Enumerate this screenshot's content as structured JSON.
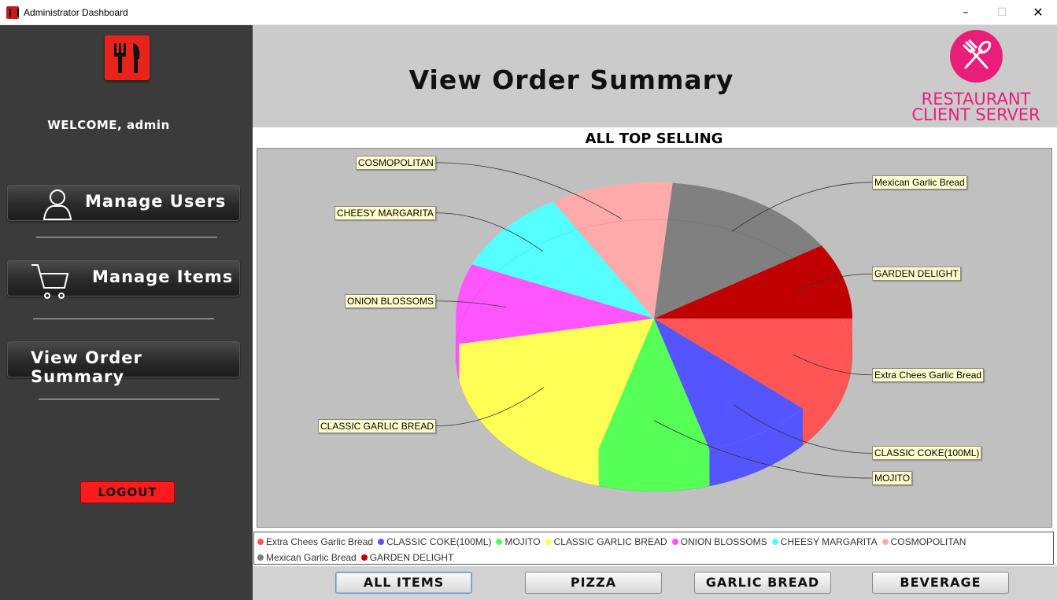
{
  "window": {
    "title": "Administrator Dashboard"
  },
  "sidebar": {
    "welcome": "WELCOME, admin",
    "nav": [
      {
        "label": "Manage Users",
        "icon": "user-icon"
      },
      {
        "label": "Manage Items",
        "icon": "cart-icon"
      },
      {
        "label": "View Order Summary"
      }
    ],
    "logout_label": "LOGOUT"
  },
  "header": {
    "title": "View Order Summary",
    "brand_line1": "RESTAURANT",
    "brand_line2": "CLIENT SERVER"
  },
  "chart_data": {
    "type": "pie",
    "title": "ALL TOP SELLING",
    "slices": [
      {
        "label": "Extra Chees Garlic Bread",
        "value": 11.5,
        "color": "#ff5555"
      },
      {
        "label": "CLASSIC COKE(100ML)",
        "value": 9,
        "color": "#5555ff"
      },
      {
        "label": "MOJITO",
        "value": 9,
        "color": "#55ff55"
      },
      {
        "label": "CLASSIC GARLIC BREAD",
        "value": 17.5,
        "color": "#ffff55"
      },
      {
        "label": "ONION BLOSSOMS",
        "value": 9.5,
        "color": "#ff55ff"
      },
      {
        "label": "CHEESY MARGARITA",
        "value": 10,
        "color": "#55ffff"
      },
      {
        "label": "COSMOPOLITAN",
        "value": 10,
        "color": "#ffaaaa"
      },
      {
        "label": "Mexican Garlic Bread",
        "value": 14.5,
        "color": "#808080"
      },
      {
        "label": "GARDEN DELIGHT",
        "value": 9,
        "color": "#c00000"
      }
    ],
    "legend_position": "bottom"
  },
  "categories": [
    "ALL ITEMS",
    "PIZZA",
    "GARLIC BREAD",
    "BEVERAGE"
  ],
  "colors": {
    "sidebar": "#3b3b3b",
    "header": "#cbcbcb",
    "brand": "#e91e7b",
    "logout": "#ff1b1b",
    "plot_bg": "#c0c0c0"
  }
}
